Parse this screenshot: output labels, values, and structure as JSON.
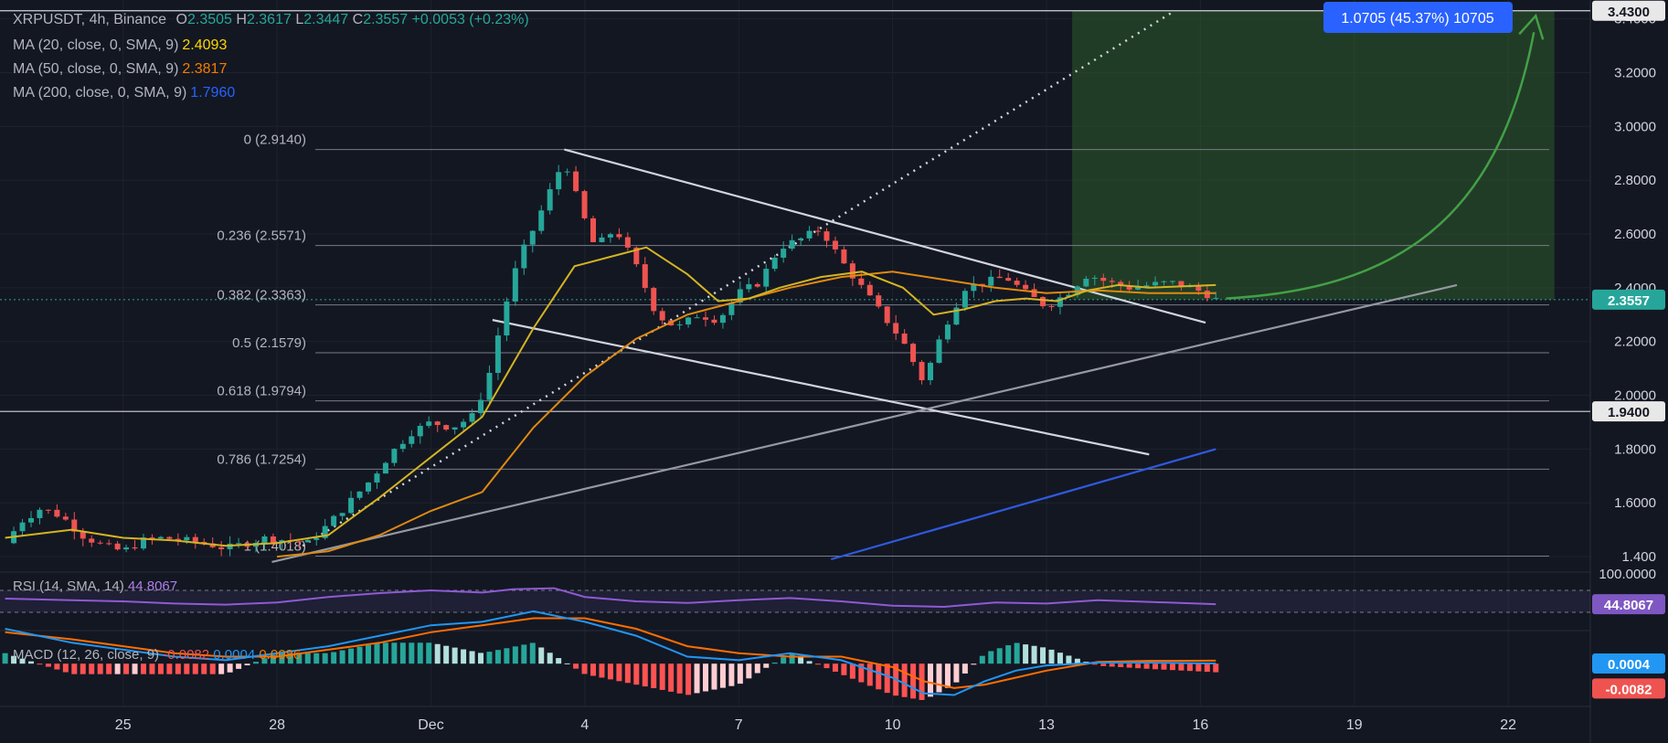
{
  "header": {
    "symbol": "XRPUSDT, 4h, Binance",
    "o_label": "O",
    "o_val": "2.3505",
    "h_label": "H",
    "h_val": "2.3617",
    "l_label": "L",
    "l_val": "2.3447",
    "c_label": "C",
    "c_val": "2.3557",
    "change": "+0.0053 (+0.23%)"
  },
  "ma20": {
    "label": "MA (20, close, 0, SMA, 9)",
    "value": "2.4093"
  },
  "ma50": {
    "label": "MA (50, close, 0, SMA, 9)",
    "value": "2.3817"
  },
  "ma200": {
    "label": "MA (200, close, 0, SMA, 9)",
    "value": "1.7960"
  },
  "rsi": {
    "label": "RSI (14, SMA, 14)",
    "value": "44.8067"
  },
  "macd": {
    "label": "MACD (12, 26, close, 9)",
    "hist": "-0.0082",
    "macd_val": "0.0004",
    "signal": "0.0086"
  },
  "tooltip": "1.0705 (45.37%) 10705",
  "colors": {
    "up": "#26a69a",
    "down": "#ef5350",
    "ma20": "#d4b422",
    "ma50": "#e08a10",
    "ma200": "#2f5ae0",
    "rsi": "#8e5ad4",
    "tooltip": "#2962ff"
  },
  "chart_data": {
    "type": "candlestick",
    "y_ticks": [
      "3.4000",
      "3.2000",
      "3.0000",
      "2.8000",
      "2.6000",
      "2.4000",
      "2.2000",
      "2.0000",
      "1.8000",
      "1.6000",
      "1.400"
    ],
    "ylim": [
      1.39,
      3.47
    ],
    "x_ticks": [
      {
        "label": "25",
        "day": 25
      },
      {
        "label": "28",
        "day": 28
      },
      {
        "label": "Dec",
        "day": 31
      },
      {
        "label": "4",
        "day": 34
      },
      {
        "label": "7",
        "day": 37
      },
      {
        "label": "10",
        "day": 40
      },
      {
        "label": "13",
        "day": 43
      },
      {
        "label": "16",
        "day": 46
      },
      {
        "label": "19",
        "day": 49
      },
      {
        "label": "22",
        "day": 52
      }
    ],
    "xlim": [
      22.6,
      53.6
    ],
    "price_labels": [
      {
        "value": 3.43,
        "text": "3.4300",
        "style": "white"
      },
      {
        "value": 2.3557,
        "text": "2.3557",
        "style": "green"
      },
      {
        "value": 1.94,
        "text": "1.9400",
        "style": "white"
      }
    ],
    "horizontal_lines": [
      3.43,
      1.94
    ],
    "fib_levels": [
      {
        "ratio": "0",
        "price": 2.914,
        "text": "0 (2.9140)"
      },
      {
        "ratio": "0.236",
        "price": 2.5571,
        "text": "0.236 (2.5571)"
      },
      {
        "ratio": "0.382",
        "price": 2.3363,
        "text": "0.382 (2.3363)"
      },
      {
        "ratio": "0.5",
        "price": 2.1579,
        "text": "0.5 (2.1579)"
      },
      {
        "ratio": "0.618",
        "price": 1.9794,
        "text": "0.618 (1.9794)"
      },
      {
        "ratio": "0.786",
        "price": 1.7254,
        "text": "0.786 (1.7254)"
      },
      {
        "ratio": "1",
        "price": 1.4018,
        "text": "1 (1.4018)"
      }
    ],
    "price_path": [
      [
        22.7,
        1.45
      ],
      [
        23.0,
        1.53
      ],
      [
        23.4,
        1.58
      ],
      [
        23.8,
        1.55
      ],
      [
        24.2,
        1.48
      ],
      [
        24.6,
        1.44
      ],
      [
        25.0,
        1.42
      ],
      [
        25.4,
        1.46
      ],
      [
        25.8,
        1.47
      ],
      [
        26.2,
        1.46
      ],
      [
        26.6,
        1.45
      ],
      [
        27.0,
        1.43
      ],
      [
        27.4,
        1.45
      ],
      [
        27.8,
        1.47
      ],
      [
        28.2,
        1.46
      ],
      [
        28.6,
        1.45
      ],
      [
        29.0,
        1.52
      ],
      [
        29.4,
        1.6
      ],
      [
        29.8,
        1.68
      ],
      [
        30.2,
        1.78
      ],
      [
        30.6,
        1.86
      ],
      [
        31.0,
        1.9
      ],
      [
        31.4,
        1.88
      ],
      [
        31.8,
        1.92
      ],
      [
        32.1,
        2.05
      ],
      [
        32.4,
        2.3
      ],
      [
        32.7,
        2.5
      ],
      [
        33.0,
        2.62
      ],
      [
        33.3,
        2.75
      ],
      [
        33.6,
        2.88
      ],
      [
        33.9,
        2.7
      ],
      [
        34.2,
        2.55
      ],
      [
        34.6,
        2.62
      ],
      [
        35.0,
        2.48
      ],
      [
        35.4,
        2.3
      ],
      [
        35.8,
        2.25
      ],
      [
        36.2,
        2.3
      ],
      [
        36.6,
        2.28
      ],
      [
        37.0,
        2.38
      ],
      [
        37.4,
        2.42
      ],
      [
        37.8,
        2.55
      ],
      [
        38.2,
        2.58
      ],
      [
        38.6,
        2.62
      ],
      [
        39.0,
        2.5
      ],
      [
        39.4,
        2.4
      ],
      [
        39.8,
        2.3
      ],
      [
        40.2,
        2.2
      ],
      [
        40.6,
        2.05
      ],
      [
        41.0,
        2.25
      ],
      [
        41.4,
        2.4
      ],
      [
        41.8,
        2.42
      ],
      [
        42.2,
        2.44
      ],
      [
        42.6,
        2.38
      ],
      [
        43.0,
        2.33
      ],
      [
        43.4,
        2.38
      ],
      [
        43.8,
        2.45
      ],
      [
        44.2,
        2.42
      ],
      [
        44.6,
        2.4
      ],
      [
        45.0,
        2.41
      ],
      [
        45.4,
        2.42
      ],
      [
        45.8,
        2.4
      ],
      [
        46.1,
        2.38
      ],
      [
        46.3,
        2.3557
      ]
    ],
    "ma20_path": [
      [
        22.7,
        1.47
      ],
      [
        24.0,
        1.5
      ],
      [
        25.0,
        1.47
      ],
      [
        26.0,
        1.46
      ],
      [
        27.0,
        1.44
      ],
      [
        28.0,
        1.45
      ],
      [
        29.0,
        1.48
      ],
      [
        30.0,
        1.62
      ],
      [
        31.0,
        1.77
      ],
      [
        32.0,
        1.92
      ],
      [
        33.0,
        2.25
      ],
      [
        33.8,
        2.48
      ],
      [
        34.6,
        2.52
      ],
      [
        35.2,
        2.55
      ],
      [
        36.0,
        2.45
      ],
      [
        36.6,
        2.35
      ],
      [
        37.2,
        2.36
      ],
      [
        37.8,
        2.4
      ],
      [
        38.6,
        2.44
      ],
      [
        39.4,
        2.46
      ],
      [
        40.2,
        2.4
      ],
      [
        40.8,
        2.3
      ],
      [
        41.4,
        2.32
      ],
      [
        42.0,
        2.35
      ],
      [
        42.6,
        2.36
      ],
      [
        43.2,
        2.35
      ],
      [
        43.8,
        2.39
      ],
      [
        44.4,
        2.41
      ],
      [
        45.0,
        2.4
      ],
      [
        46.3,
        2.41
      ]
    ],
    "ma50_path": [
      [
        28.0,
        1.4
      ],
      [
        29.0,
        1.42
      ],
      [
        30.0,
        1.48
      ],
      [
        31.0,
        1.57
      ],
      [
        32.0,
        1.64
      ],
      [
        33.0,
        1.88
      ],
      [
        34.0,
        2.07
      ],
      [
        35.0,
        2.21
      ],
      [
        36.0,
        2.3
      ],
      [
        37.0,
        2.35
      ],
      [
        38.0,
        2.4
      ],
      [
        39.0,
        2.44
      ],
      [
        40.0,
        2.46
      ],
      [
        41.0,
        2.43
      ],
      [
        42.0,
        2.4
      ],
      [
        43.0,
        2.38
      ],
      [
        44.0,
        2.39
      ],
      [
        45.0,
        2.38
      ],
      [
        46.3,
        2.38
      ]
    ],
    "ma200_path": [
      [
        38.8,
        1.39
      ],
      [
        46.3,
        1.8
      ]
    ],
    "trendlines": [
      {
        "from": [
          33.6,
          2.914
        ],
        "to": [
          46.1,
          2.27
        ],
        "style": "white"
      },
      {
        "from": [
          32.2,
          2.28
        ],
        "to": [
          45.0,
          1.78
        ],
        "style": "white"
      },
      {
        "from": [
          27.9,
          1.38
        ],
        "to": [
          51.0,
          2.41
        ],
        "style": "gray"
      }
    ],
    "projection_path": [
      [
        28.5,
        1.44
      ],
      [
        45.5,
        3.43
      ]
    ],
    "target_box": {
      "x_from": 43.5,
      "x_to": 52.9,
      "y_from": 2.3557,
      "y_to": 3.43
    },
    "projection_arrow": {
      "from": [
        46.5,
        2.36
      ],
      "to": [
        52.5,
        3.35
      ]
    },
    "rsi_ylim": [
      0,
      100
    ],
    "rsi_bands": [
      70,
      30
    ],
    "rsi_tick": "100.0000",
    "rsi_path": [
      [
        22.7,
        55
      ],
      [
        24,
        52
      ],
      [
        25,
        50
      ],
      [
        26,
        46
      ],
      [
        27,
        44
      ],
      [
        28,
        48
      ],
      [
        29,
        58
      ],
      [
        30,
        65
      ],
      [
        31,
        70
      ],
      [
        32,
        66
      ],
      [
        32.6,
        72
      ],
      [
        33.4,
        74
      ],
      [
        34,
        58
      ],
      [
        35,
        50
      ],
      [
        36,
        47
      ],
      [
        37,
        52
      ],
      [
        38,
        56
      ],
      [
        39,
        50
      ],
      [
        40,
        42
      ],
      [
        41,
        40
      ],
      [
        42,
        48
      ],
      [
        43,
        46
      ],
      [
        44,
        52
      ],
      [
        45,
        49
      ],
      [
        46.3,
        44.8067
      ]
    ],
    "macd_ylim": [
      -0.12,
      0.1
    ],
    "macd_line": [
      [
        22.7,
        0.1
      ],
      [
        24,
        0.06
      ],
      [
        25,
        0.04
      ],
      [
        26,
        0.02
      ],
      [
        27,
        0.01
      ],
      [
        28,
        0.03
      ],
      [
        29,
        0.05
      ],
      [
        30,
        0.08
      ],
      [
        31,
        0.11
      ],
      [
        32,
        0.12
      ],
      [
        33,
        0.15
      ],
      [
        34,
        0.12
      ],
      [
        35,
        0.08
      ],
      [
        36,
        0.02
      ],
      [
        37,
        0.01
      ],
      [
        38,
        0.03
      ],
      [
        39,
        0.01
      ],
      [
        40,
        -0.04
      ],
      [
        40.6,
        -0.085
      ],
      [
        41.2,
        -0.09
      ],
      [
        41.8,
        -0.05
      ],
      [
        42.4,
        -0.02
      ],
      [
        43,
        -0.005
      ],
      [
        44,
        0.003
      ],
      [
        45,
        0.003
      ],
      [
        46.3,
        0.0004
      ]
    ],
    "signal_line": [
      [
        22.7,
        0.09
      ],
      [
        24,
        0.07
      ],
      [
        25,
        0.05
      ],
      [
        26,
        0.03
      ],
      [
        27,
        0.02
      ],
      [
        28,
        0.02
      ],
      [
        29,
        0.04
      ],
      [
        30,
        0.06
      ],
      [
        31,
        0.09
      ],
      [
        32,
        0.11
      ],
      [
        33,
        0.13
      ],
      [
        34,
        0.13
      ],
      [
        35,
        0.1
      ],
      [
        36,
        0.05
      ],
      [
        37,
        0.03
      ],
      [
        38,
        0.02
      ],
      [
        39,
        0.02
      ],
      [
        40,
        -0.01
      ],
      [
        40.6,
        -0.05
      ],
      [
        41.2,
        -0.07
      ],
      [
        41.8,
        -0.06
      ],
      [
        42.4,
        -0.04
      ],
      [
        43,
        -0.02
      ],
      [
        44,
        0.005
      ],
      [
        45,
        0.008
      ],
      [
        46.3,
        0.0086
      ]
    ],
    "macd_price_labels": [
      {
        "value": 0.0004,
        "text": "0.0004",
        "style": "blue"
      },
      {
        "value": -0.0082,
        "text": "-0.0082",
        "style": "red"
      }
    ]
  }
}
